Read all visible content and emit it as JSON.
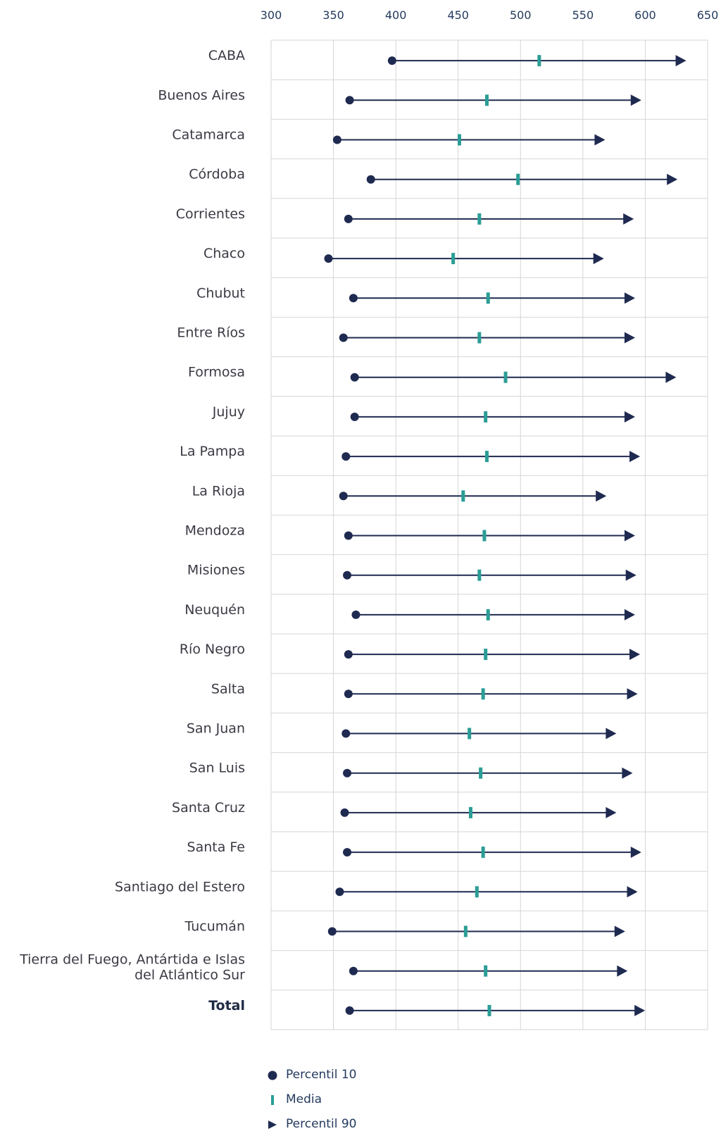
{
  "chart_data": {
    "type": "dot-range",
    "axis": {
      "ticks": [
        300,
        350,
        400,
        450,
        500,
        550,
        600,
        650
      ],
      "xlim": [
        300,
        650
      ],
      "position": "top"
    },
    "grid": true,
    "colors": {
      "p10": "#1f2a50",
      "mean": "#2a9d96",
      "line": "#1f2a50",
      "grid": "#d6d6d6"
    },
    "legend": {
      "placement": "bottom",
      "items": [
        {
          "key": "p10",
          "label": "Percentil 10"
        },
        {
          "key": "mean",
          "label": "Media"
        },
        {
          "key": "p90",
          "label": "Percentil 90"
        }
      ]
    },
    "rows": [
      {
        "label": [
          "CABA"
        ],
        "p10": 397,
        "mean": 515,
        "p90": 630
      },
      {
        "label": [
          "Buenos Aires"
        ],
        "p10": 363,
        "mean": 473,
        "p90": 594
      },
      {
        "label": [
          "Catamarca"
        ],
        "p10": 353,
        "mean": 451,
        "p90": 565
      },
      {
        "label": [
          "Córdoba"
        ],
        "p10": 380,
        "mean": 498,
        "p90": 623
      },
      {
        "label": [
          "Corrientes"
        ],
        "p10": 362,
        "mean": 467,
        "p90": 588
      },
      {
        "label": [
          "Chaco"
        ],
        "p10": 346,
        "mean": 446,
        "p90": 564
      },
      {
        "label": [
          "Chubut"
        ],
        "p10": 366,
        "mean": 474,
        "p90": 589
      },
      {
        "label": [
          "Entre Ríos"
        ],
        "p10": 358,
        "mean": 467,
        "p90": 589
      },
      {
        "label": [
          "Formosa"
        ],
        "p10": 367,
        "mean": 488,
        "p90": 622
      },
      {
        "label": [
          "Jujuy"
        ],
        "p10": 367,
        "mean": 472,
        "p90": 589
      },
      {
        "label": [
          "La Pampa"
        ],
        "p10": 360,
        "mean": 473,
        "p90": 593
      },
      {
        "label": [
          "La Rioja"
        ],
        "p10": 358,
        "mean": 454,
        "p90": 566
      },
      {
        "label": [
          "Mendoza"
        ],
        "p10": 362,
        "mean": 471,
        "p90": 589
      },
      {
        "label": [
          "Misiones"
        ],
        "p10": 361,
        "mean": 467,
        "p90": 590
      },
      {
        "label": [
          "Neuquén"
        ],
        "p10": 368,
        "mean": 474,
        "p90": 589
      },
      {
        "label": [
          "Río Negro"
        ],
        "p10": 362,
        "mean": 472,
        "p90": 593
      },
      {
        "label": [
          "Salta"
        ],
        "p10": 362,
        "mean": 470,
        "p90": 591
      },
      {
        "label": [
          "San Juan"
        ],
        "p10": 360,
        "mean": 459,
        "p90": 574
      },
      {
        "label": [
          "San Luis"
        ],
        "p10": 361,
        "mean": 468,
        "p90": 587
      },
      {
        "label": [
          "Santa Cruz"
        ],
        "p10": 359,
        "mean": 460,
        "p90": 574
      },
      {
        "label": [
          "Santa Fe"
        ],
        "p10": 361,
        "mean": 470,
        "p90": 594
      },
      {
        "label": [
          "Santiago del Estero"
        ],
        "p10": 355,
        "mean": 465,
        "p90": 591
      },
      {
        "label": [
          "Tucumán"
        ],
        "p10": 349,
        "mean": 456,
        "p90": 581
      },
      {
        "label": [
          "Tierra del Fuego, Antártida e Islas",
          "del Atlántico Sur"
        ],
        "p10": 366,
        "mean": 472,
        "p90": 583
      },
      {
        "label": [
          "Total"
        ],
        "p10": 363,
        "mean": 475,
        "p90": 597,
        "bold": true
      }
    ]
  }
}
